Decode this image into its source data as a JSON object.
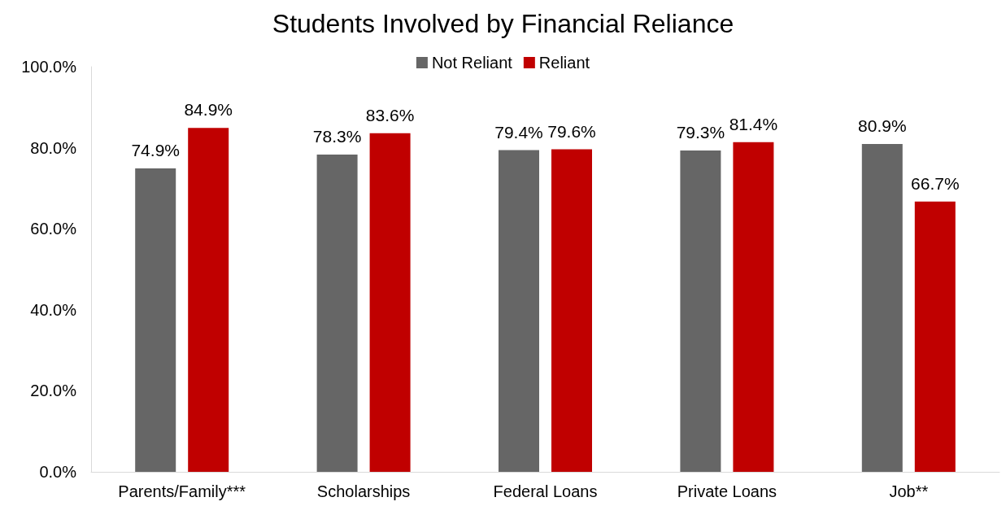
{
  "chart_data": {
    "type": "bar",
    "title": "Students Involved by Financial Reliance",
    "categories": [
      "Parents/Family***",
      "Scholarships",
      "Federal Loans",
      "Private Loans",
      "Job**"
    ],
    "series": [
      {
        "name": "Not Reliant",
        "color": "#666666",
        "values": [
          74.9,
          78.3,
          79.4,
          79.3,
          80.9
        ],
        "value_labels": [
          "74.9%",
          "78.3%",
          "79.4%",
          "79.3%",
          "80.9%"
        ]
      },
      {
        "name": "Reliant",
        "color": "#c00000",
        "values": [
          84.9,
          83.6,
          79.6,
          81.4,
          66.7
        ],
        "value_labels": [
          "84.9%",
          "83.6%",
          "79.6%",
          "81.4%",
          "66.7%"
        ]
      }
    ],
    "ylim": [
      0,
      100
    ],
    "yticks": [
      {
        "value": 0,
        "label": "0.0%"
      },
      {
        "value": 20,
        "label": "20.0%"
      },
      {
        "value": 40,
        "label": "40.0%"
      },
      {
        "value": 60,
        "label": "60.0%"
      },
      {
        "value": 80,
        "label": "80.0%"
      },
      {
        "value": 100,
        "label": "100.0%"
      }
    ],
    "grid": false,
    "legend": "top"
  }
}
